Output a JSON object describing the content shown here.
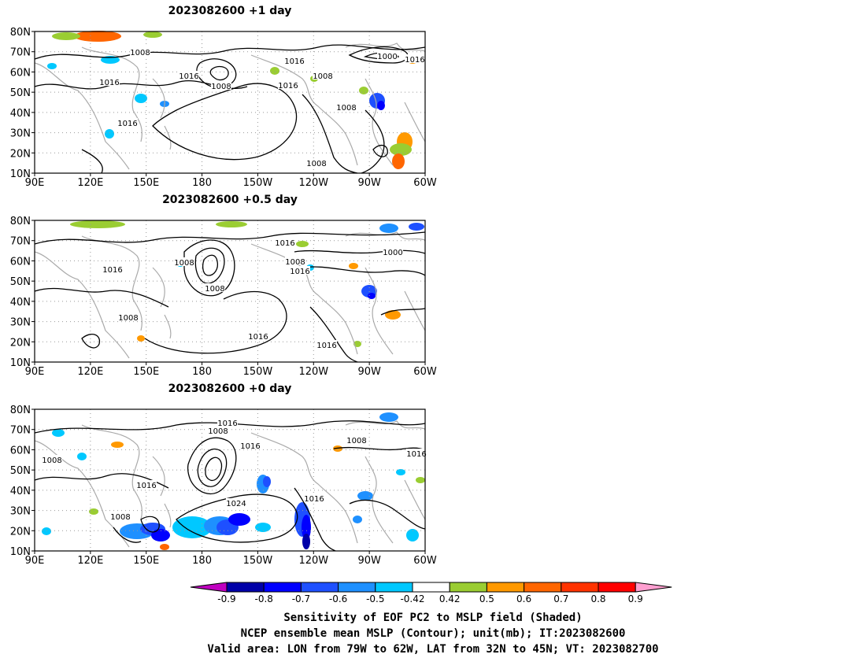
{
  "panels": [
    {
      "title": "2023082600  +1 day",
      "contour_labels": [
        "1008",
        "1016",
        "1016",
        "1008",
        "1016",
        "1008",
        "1000",
        "1016",
        "1016",
        "1008",
        "1016",
        "1008"
      ]
    },
    {
      "title": "2023082600  +0.5 day",
      "contour_labels": [
        "1016",
        "1008",
        "1008",
        "1016",
        "1008",
        "1016",
        "1000",
        "1008",
        "1016",
        "1016"
      ]
    },
    {
      "title": "2023082600  +0 day",
      "contour_labels": [
        "1016",
        "1008",
        "1016",
        "1008",
        "1016",
        "1024",
        "1008",
        "1008",
        "1016",
        "1016"
      ]
    }
  ],
  "map": {
    "lat_ticks": [
      "80N",
      "70N",
      "60N",
      "50N",
      "40N",
      "30N",
      "20N",
      "10N"
    ],
    "lon_ticks": [
      "90E",
      "120E",
      "150E",
      "180",
      "150W",
      "120W",
      "90W",
      "60W"
    ],
    "lat_range": [
      10,
      80
    ],
    "lon_range_degE": [
      90,
      300
    ]
  },
  "colorbar": {
    "ticks": [
      "-0.9",
      "-0.8",
      "-0.7",
      "-0.6",
      "-0.5",
      "-0.42",
      "0.42",
      "0.5",
      "0.6",
      "0.7",
      "0.8",
      "0.9"
    ],
    "under_color": "#c000c0",
    "over_color": "#ff9fd0",
    "colors": [
      "#0000a8",
      "#0000ff",
      "#1e50ff",
      "#1e90ff",
      "#00c8ff",
      "#ffffff",
      "#9acd32",
      "#ff9900",
      "#ff6600",
      "#ff3300",
      "#ff0000"
    ]
  },
  "captions": [
    "Sensitivity of EOF PC2 to MSLP field (Shaded)",
    "NCEP ensemble mean MSLP (Contour); unit(mb); IT:2023082600",
    "Valid area: LON from 79W to 62W, LAT from 32N to 45N; VT: 2023082700"
  ]
}
